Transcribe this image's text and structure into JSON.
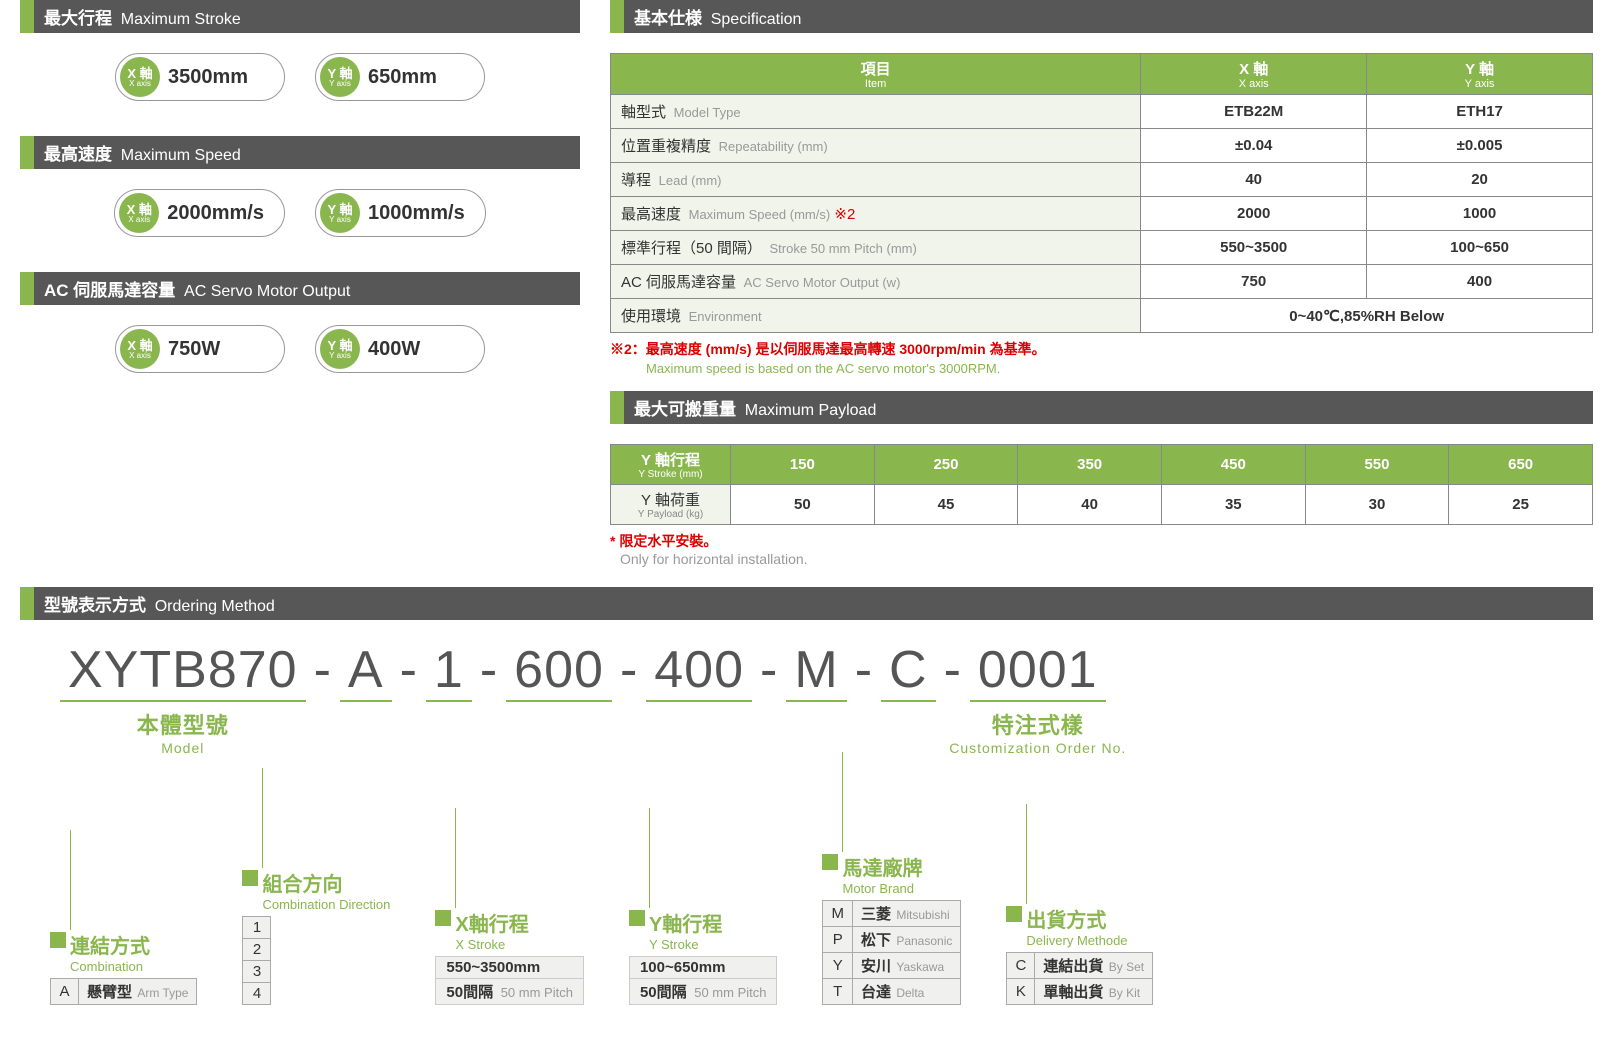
{
  "colors": {
    "accent": "#8ab64e",
    "header": "#585757",
    "text": "#333",
    "muted": "#999",
    "red": "#d00",
    "rowbg": "#f0f4ea"
  },
  "sections": {
    "max_stroke": {
      "cn": "最大行程",
      "en": "Maximum Stroke"
    },
    "max_speed": {
      "cn": "最高速度",
      "en": "Maximum Speed"
    },
    "servo": {
      "cn": "AC 伺服馬達容量",
      "en": "AC Servo Motor Output"
    },
    "spec": {
      "cn": "基本仕様",
      "en": "Specification"
    },
    "payload": {
      "cn": "最大可搬重量",
      "en": "Maximum Payload"
    },
    "ordering": {
      "cn": "型號表示方式",
      "en": "Ordering Method"
    }
  },
  "axis_badge": {
    "x": {
      "cn": "X 軸",
      "en": "X axis"
    },
    "y": {
      "cn": "Y 軸",
      "en": "Y axis"
    }
  },
  "pills": {
    "stroke": {
      "x": "3500mm",
      "y": "650mm"
    },
    "speed": {
      "x": "2000mm/s",
      "y": "1000mm/s"
    },
    "servo": {
      "x": "750W",
      "y": "400W"
    }
  },
  "spec_table": {
    "headers": {
      "item": {
        "cn": "項目",
        "en": "Item"
      },
      "x": {
        "cn": "X 軸",
        "en": "X axis"
      },
      "y": {
        "cn": "Y 軸",
        "en": "Y axis"
      }
    },
    "rows": [
      {
        "label_cn": "軸型式",
        "label_en": "Model Type",
        "x": "ETB22M",
        "y": "ETH17"
      },
      {
        "label_cn": "位置重複精度",
        "label_en": "Repeatability (mm)",
        "x": "±0.04",
        "y": "±0.005"
      },
      {
        "label_cn": "導程",
        "label_en": "Lead (mm)",
        "x": "40",
        "y": "20"
      },
      {
        "label_cn": "最高速度",
        "label_en": "Maximum Speed (mm/s)",
        "star": "※2",
        "x": "2000",
        "y": "1000"
      },
      {
        "label_cn": "標準行程（50 間隔）",
        "label_en": "Stroke 50 mm Pitch (mm)",
        "x": "550~3500",
        "y": "100~650"
      },
      {
        "label_cn": "AC 伺服馬達容量",
        "label_en": "AC Servo Motor Output (w)",
        "x": "750",
        "y": "400"
      },
      {
        "label_cn": "使用環境",
        "label_en": "Environment",
        "merged": "0~40℃,85%RH Below"
      }
    ]
  },
  "spec_note": {
    "prefix": "※2：",
    "cn": "最高速度 (mm/s) 是以伺服馬達最高轉速 3000rpm/min 為基準。",
    "en": "Maximum speed is based on the AC servo motor's 3000RPM."
  },
  "payload_table": {
    "row1_head": {
      "cn": "Y 軸行程",
      "en": "Y Stroke (mm)"
    },
    "row1_vals": [
      "150",
      "250",
      "350",
      "450",
      "550",
      "650"
    ],
    "row2_head": {
      "cn": "Y 軸荷重",
      "en": "Y Payload (kg)"
    },
    "row2_vals": [
      "50",
      "45",
      "40",
      "35",
      "30",
      "25"
    ]
  },
  "payload_note": {
    "cn": "* 限定水平安裝。",
    "en": "Only for horizontal installation."
  },
  "ordering": {
    "segments": [
      "XYTB870",
      "A",
      "1",
      "600",
      "400",
      "M",
      "C",
      "0001"
    ],
    "model_annot": {
      "cn": "本體型號",
      "en": "Model"
    },
    "custom_annot": {
      "cn": "特注式樣",
      "en": "Customization Order No."
    }
  },
  "legends": {
    "combination": {
      "title_cn": "連結方式",
      "title_en": "Combination",
      "rows": [
        [
          "A",
          "懸臂型",
          "Arm Type"
        ]
      ]
    },
    "direction": {
      "title_cn": "組合方向",
      "title_en": "Combination Direction",
      "rows": [
        [
          "1",
          ""
        ],
        [
          "2",
          ""
        ],
        [
          "3",
          ""
        ],
        [
          "4",
          ""
        ]
      ]
    },
    "xstroke": {
      "title_cn": "X軸行程",
      "title_en": "X Stroke",
      "val": "550~3500mm",
      "pitch_cn": "50間隔",
      "pitch_en": "50 mm Pitch"
    },
    "ystroke": {
      "title_cn": "Y軸行程",
      "title_en": "Y Stroke",
      "val": "100~650mm",
      "pitch_cn": "50間隔",
      "pitch_en": "50 mm Pitch"
    },
    "motor": {
      "title_cn": "馬達廠牌",
      "title_en": "Motor Brand",
      "rows": [
        [
          "M",
          "三菱",
          "Mitsubishi"
        ],
        [
          "P",
          "松下",
          "Panasonic"
        ],
        [
          "Y",
          "安川",
          "Yaskawa"
        ],
        [
          "T",
          "台達",
          "Delta"
        ]
      ]
    },
    "delivery": {
      "title_cn": "出貨方式",
      "title_en": "Delivery Methode",
      "rows": [
        [
          "C",
          "連結出貨",
          "By Set"
        ],
        [
          "K",
          "單軸出貨",
          "By Kit"
        ]
      ]
    }
  }
}
